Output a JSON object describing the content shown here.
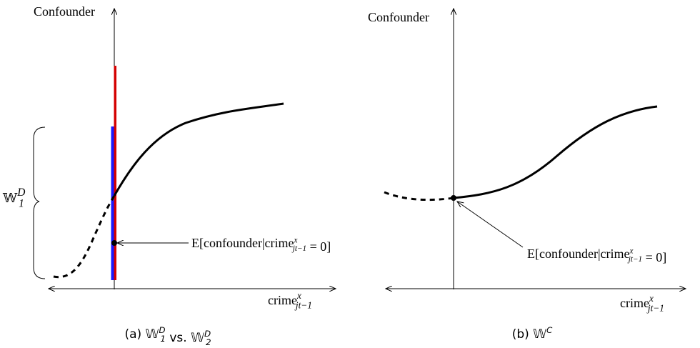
{
  "panels": [
    {
      "y_axis_label": [
        {
          "text": "Confounder"
        }
      ],
      "x_axis_label": [
        {
          "text": "crime",
          "sup": "x",
          "sub": "jt−1"
        }
      ],
      "annotation": [
        {
          "text": "E[confounder|crime",
          "sup": "x",
          "sub": "jt−1"
        },
        {
          "text": " = 0]"
        }
      ],
      "brace_label": [
        {
          "text": "𝕎",
          "sup": "D",
          "sub": "1"
        }
      ],
      "caption": [
        {
          "text": "(a) "
        },
        {
          "text": "𝕎",
          "sup": "D",
          "sub": "1"
        },
        {
          "text": " vs. "
        },
        {
          "text": "𝕎",
          "sup": "D",
          "sub": "2"
        }
      ]
    },
    {
      "y_axis_label": [
        {
          "text": "Confounder"
        }
      ],
      "x_axis_label": [
        {
          "text": "crime",
          "sup": "x",
          "sub": "jt−1"
        }
      ],
      "annotation": [
        {
          "text": "E[confounder|crime",
          "sup": "x",
          "sub": "jt−1"
        },
        {
          "text": " = 0]"
        }
      ],
      "caption": [
        {
          "text": "(b) "
        },
        {
          "text": "𝕎",
          "sup": "C"
        }
      ]
    }
  ]
}
